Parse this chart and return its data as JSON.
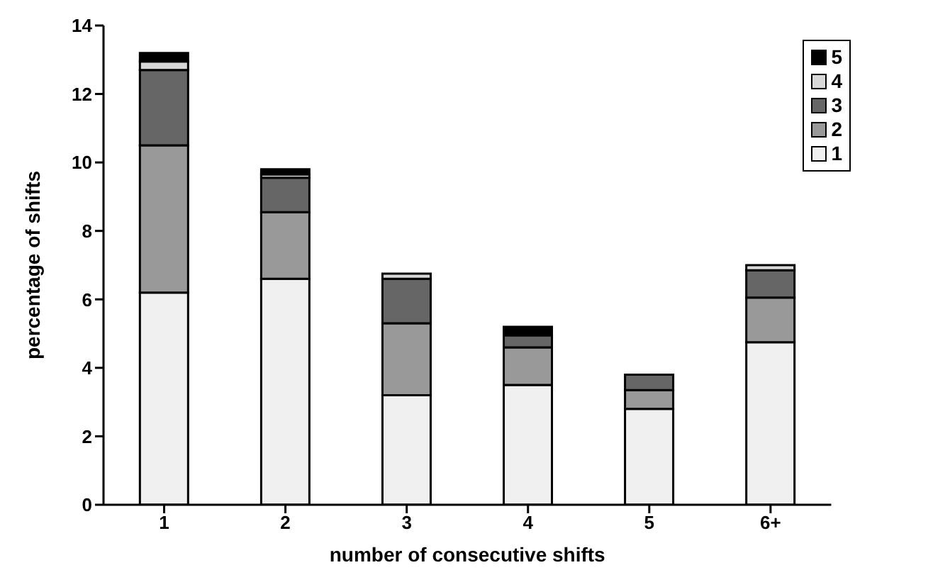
{
  "chart_data": {
    "type": "bar",
    "stacked": true,
    "xlabel": "number of consecutive shifts",
    "ylabel": "percentage of shifts",
    "categories": [
      "1",
      "2",
      "3",
      "4",
      "5",
      "6+"
    ],
    "series": [
      {
        "name": "1",
        "color": "#f0f0f0",
        "values": [
          6.2,
          6.6,
          3.2,
          3.5,
          2.8,
          4.75
        ]
      },
      {
        "name": "2",
        "color": "#999999",
        "values": [
          4.3,
          1.95,
          2.1,
          1.1,
          0.55,
          1.3
        ]
      },
      {
        "name": "3",
        "color": "#666666",
        "values": [
          2.2,
          1.0,
          1.3,
          0.35,
          0.45,
          0.8
        ]
      },
      {
        "name": "4",
        "color": "#d8d8d8",
        "values": [
          0.25,
          0.1,
          0.15,
          null,
          0,
          0.15
        ]
      },
      {
        "name": "5",
        "color": "#000000",
        "values": [
          0.25,
          0.15,
          0,
          0.25,
          0,
          0
        ]
      }
    ],
    "ylim": [
      0,
      14
    ],
    "yticks": [
      0,
      2,
      4,
      6,
      8,
      10,
      12,
      14
    ],
    "grid": false,
    "legend": "top right"
  }
}
